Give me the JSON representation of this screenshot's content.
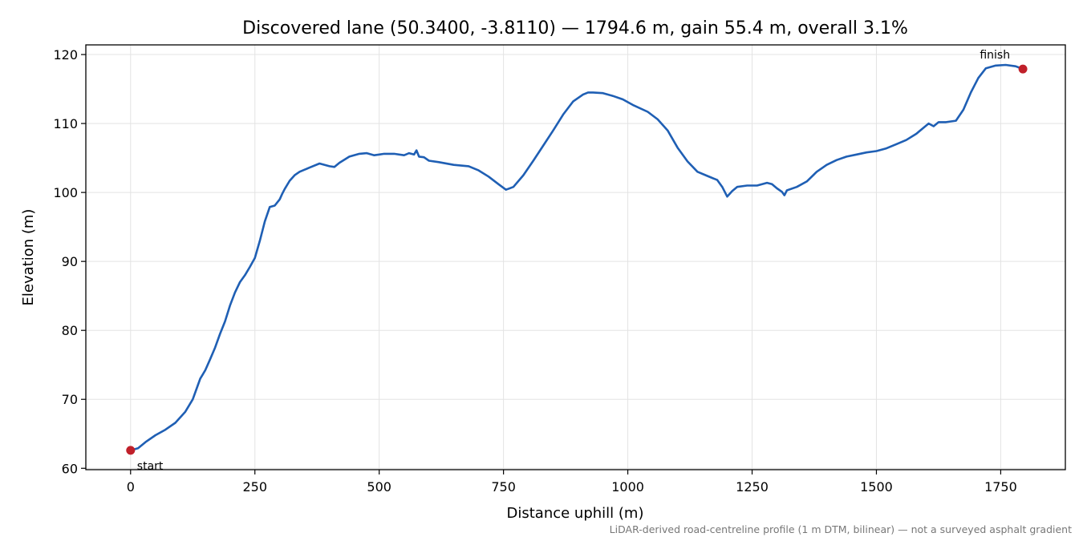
{
  "chart_data": {
    "type": "line",
    "title": "Discovered lane (50.3400, -3.8110) — 1794.6 m, gain 55.4 m, overall 3.1%",
    "xlabel": "Distance uphill (m)",
    "ylabel": "Elevation (m)",
    "xlim": [
      -90,
      1880
    ],
    "ylim": [
      59.8,
      121.4
    ],
    "xticks": [
      0,
      250,
      500,
      750,
      1000,
      1250,
      1500,
      1750
    ],
    "yticks": [
      60,
      70,
      80,
      90,
      100,
      110,
      120
    ],
    "grid": true,
    "footnote": "LiDAR-derived road-centreline profile (1 m DTM, bilinear) — not a surveyed asphalt gradient",
    "colors": {
      "line": "#1f5fb4",
      "marker": "#c0202a",
      "grid": "#e3e3e3"
    },
    "series": [
      {
        "x": [
          0,
          15,
          30,
          50,
          70,
          90,
          110,
          125,
          135,
          140,
          145,
          150,
          160,
          170,
          180,
          190,
          200,
          210,
          220,
          230,
          240,
          250,
          260,
          270,
          280,
          290,
          300,
          305,
          310,
          320,
          330,
          340,
          350,
          360,
          380,
          400,
          410,
          420,
          440,
          460,
          475,
          490,
          500,
          510,
          530,
          550,
          560,
          570,
          575,
          580,
          590,
          600,
          620,
          650,
          680,
          700,
          720,
          740,
          755,
          770,
          790,
          810,
          830,
          850,
          870,
          890,
          910,
          920,
          930,
          950,
          970,
          990,
          1010,
          1040,
          1060,
          1080,
          1100,
          1120,
          1140,
          1160,
          1180,
          1190,
          1200,
          1210,
          1220,
          1240,
          1260,
          1280,
          1290,
          1300,
          1310,
          1315,
          1320,
          1340,
          1360,
          1380,
          1400,
          1420,
          1440,
          1460,
          1480,
          1500,
          1520,
          1540,
          1560,
          1580,
          1595,
          1605,
          1615,
          1625,
          1640,
          1660,
          1675,
          1690,
          1705,
          1720,
          1740,
          1760,
          1780,
          1794.6
        ],
        "y": [
          62.6,
          62.9,
          63.8,
          64.8,
          65.6,
          66.6,
          68.2,
          70.0,
          72.0,
          73.0,
          73.6,
          74.2,
          75.8,
          77.5,
          79.5,
          81.3,
          83.6,
          85.5,
          87.0,
          88.0,
          89.2,
          90.5,
          93.0,
          95.8,
          97.9,
          98.1,
          99.0,
          99.8,
          100.5,
          101.7,
          102.5,
          103.0,
          103.3,
          103.6,
          104.2,
          103.8,
          103.7,
          104.3,
          105.2,
          105.6,
          105.7,
          105.4,
          105.5,
          105.6,
          105.6,
          105.4,
          105.7,
          105.5,
          106.1,
          105.2,
          105.1,
          104.6,
          104.4,
          104.0,
          103.8,
          103.2,
          102.3,
          101.2,
          100.4,
          100.8,
          102.5,
          104.6,
          106.8,
          109.0,
          111.3,
          113.2,
          114.2,
          114.5,
          114.5,
          114.4,
          114.0,
          113.5,
          112.7,
          111.7,
          110.6,
          109.0,
          106.5,
          104.5,
          103.0,
          102.4,
          101.8,
          100.8,
          99.4,
          100.2,
          100.8,
          101.0,
          101.0,
          101.4,
          101.2,
          100.6,
          100.1,
          99.6,
          100.3,
          100.8,
          101.6,
          103.0,
          104.0,
          104.7,
          105.2,
          105.5,
          105.8,
          106.0,
          106.4,
          107.0,
          107.6,
          108.5,
          109.4,
          110.0,
          109.6,
          110.2,
          110.2,
          110.4,
          112.0,
          114.5,
          116.6,
          118.0,
          118.4,
          118.5,
          118.3,
          117.9
        ]
      }
    ],
    "annotations": [
      {
        "label": "start",
        "x": 0,
        "y": 62.6
      },
      {
        "label": "finish",
        "x": 1794.6,
        "y": 117.9
      }
    ]
  }
}
